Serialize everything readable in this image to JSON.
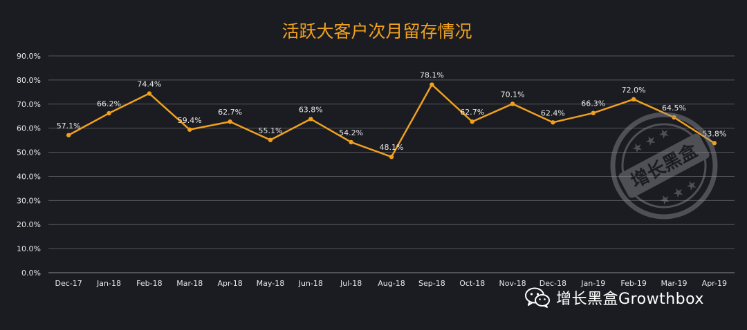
{
  "chart_data": {
    "type": "line",
    "title": "活跃大客户次月留存情况",
    "categories": [
      "Dec-17",
      "Jan-18",
      "Feb-18",
      "Mar-18",
      "Apr-18",
      "May-18",
      "Jun-18",
      "Jul-18",
      "Aug-18",
      "Sep-18",
      "Oct-18",
      "Nov-18",
      "Dec-18",
      "Jan-19",
      "Feb-19",
      "Mar-19",
      "Apr-19"
    ],
    "values": [
      57.1,
      66.2,
      74.4,
      59.4,
      62.7,
      55.1,
      63.8,
      54.2,
      48.1,
      78.1,
      62.7,
      70.1,
      62.4,
      66.3,
      72.0,
      64.5,
      53.8
    ],
    "data_labels": [
      "57.1%",
      "66.2%",
      "74.4%",
      "59.4%",
      "62.7%",
      "55.1%",
      "63.8%",
      "54.2%",
      "48.1%",
      "78.1%",
      "62.7%",
      "70.1%",
      "62.4%",
      "66.3%",
      "72.0%",
      "64.5%",
      "53.8%"
    ],
    "ylim": [
      0,
      90
    ],
    "yticks": [
      "0.0%",
      "10.0%",
      "20.0%",
      "30.0%",
      "40.0%",
      "50.0%",
      "60.0%",
      "70.0%",
      "80.0%",
      "90.0%"
    ],
    "xlabel": "",
    "ylabel": "",
    "grid": true,
    "line_color": "#f0a11e",
    "background": "#1b1c21"
  },
  "footer": {
    "brand": "增长黑盒Growthbox",
    "icon": "wechat-icon"
  },
  "watermark": {
    "text": "增长黑盒",
    "icon": "stamp-watermark"
  }
}
